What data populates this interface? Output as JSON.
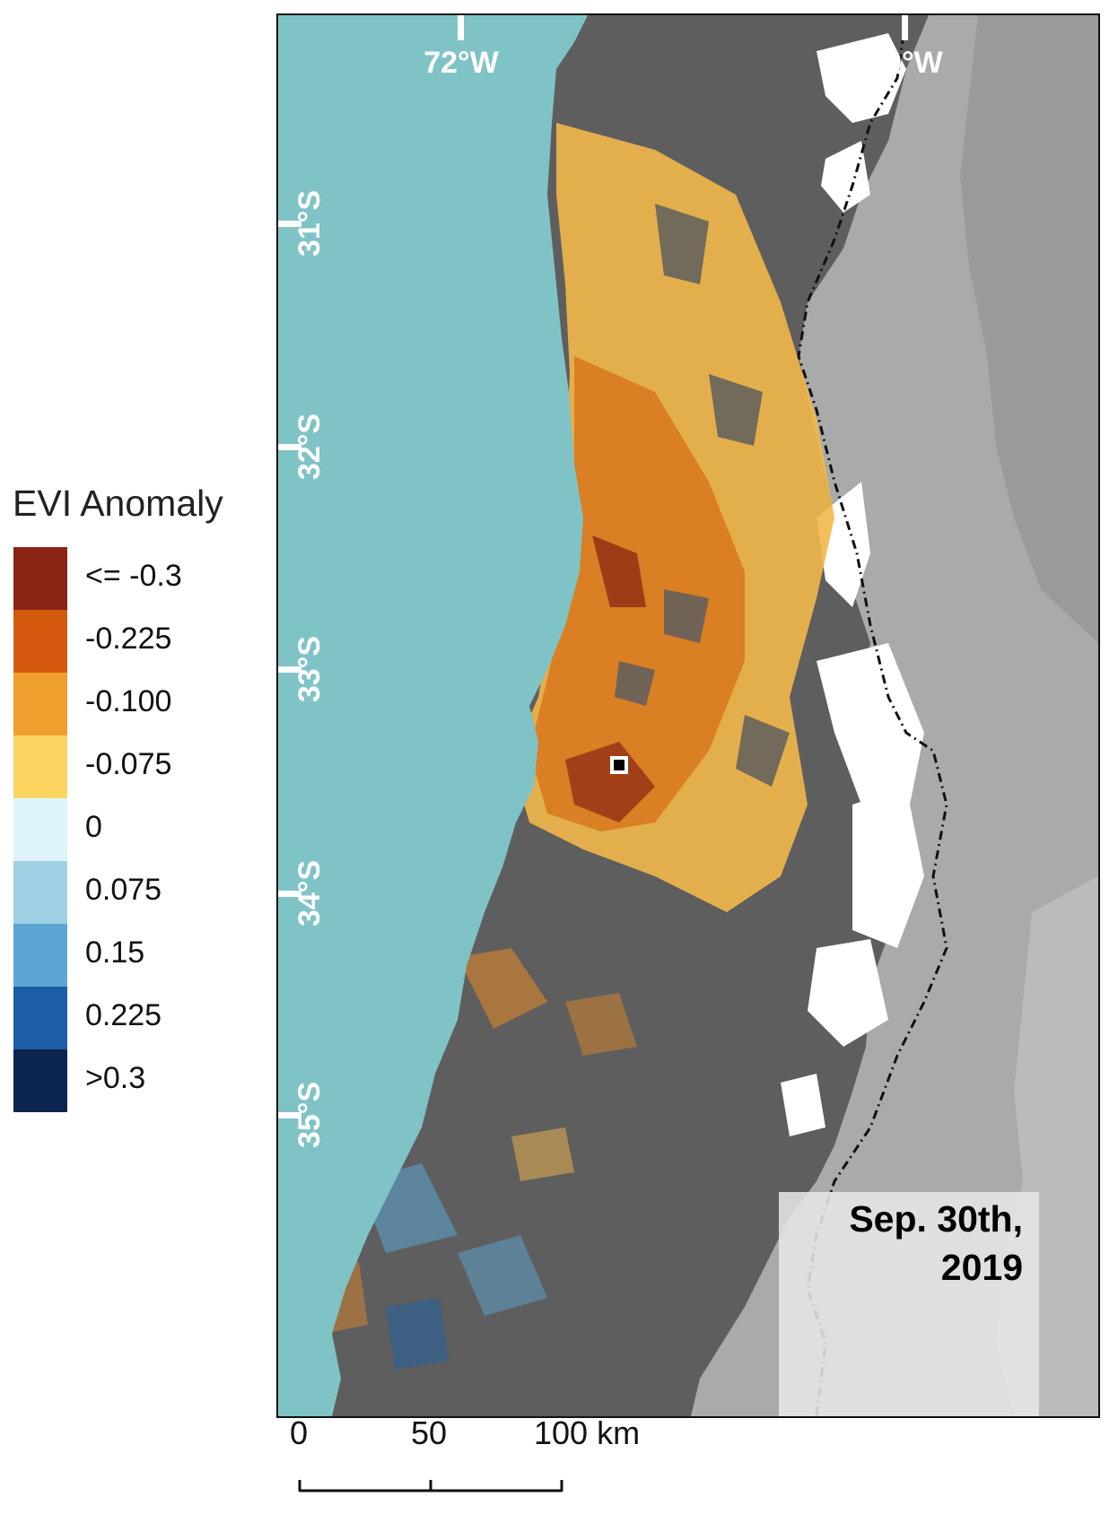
{
  "legend": {
    "title": "EVI Anomaly",
    "items": [
      {
        "label": "<= -0.3",
        "color": "#8b2414"
      },
      {
        "label": "-0.225",
        "color": "#d35a0d"
      },
      {
        "label": "-0.100",
        "color": "#ee9f2d"
      },
      {
        "label": "-0.075",
        "color": "#fbd55f"
      },
      {
        "label": "0",
        "color": "#dff3fb"
      },
      {
        "label": "0.075",
        "color": "#9fd0e4"
      },
      {
        "label": "0.15",
        "color": "#5ba6d2"
      },
      {
        "label": "0.225",
        "color": "#1c5fa6"
      },
      {
        "label": ">0.3",
        "color": "#0c2450"
      }
    ]
  },
  "map": {
    "longitude_labels": [
      "72°W",
      "70°W"
    ],
    "latitude_labels": [
      "31°S",
      "32°S",
      "33°S",
      "34°S",
      "35°S"
    ],
    "date_label_line1": "Sep. 30th,",
    "date_label_line2": "2019",
    "ocean_color": "#7fc3c6",
    "land_color": "#5e5e5e",
    "relief_color": "#aaaaaa",
    "graticule_color": "#ffffff"
  },
  "scale_bar": {
    "labels": [
      "0",
      "50",
      "100 km"
    ]
  }
}
